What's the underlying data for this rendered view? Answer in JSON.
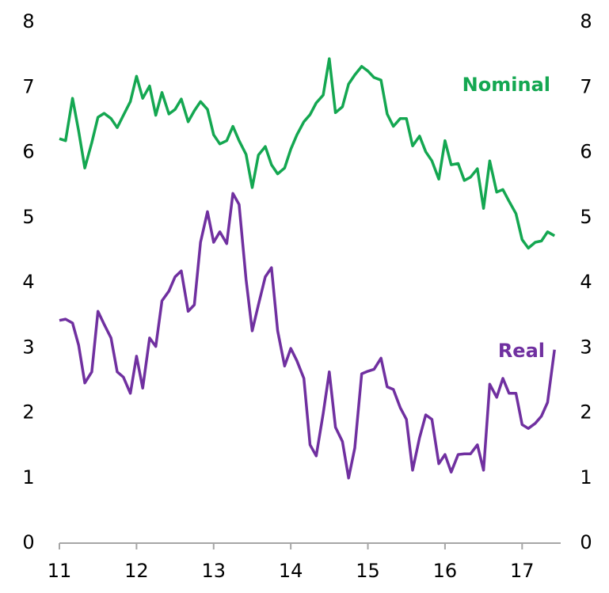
{
  "chart_data": {
    "type": "line",
    "x": [
      11,
      11.08,
      11.17,
      11.25,
      11.33,
      11.42,
      11.5,
      11.58,
      11.67,
      11.75,
      11.83,
      11.92,
      12,
      12.08,
      12.17,
      12.25,
      12.33,
      12.42,
      12.5,
      12.58,
      12.67,
      12.75,
      12.83,
      12.92,
      13,
      13.08,
      13.17,
      13.25,
      13.33,
      13.42,
      13.5,
      13.58,
      13.67,
      13.75,
      13.83,
      13.92,
      14,
      14.08,
      14.17,
      14.25,
      14.33,
      14.42,
      14.5,
      14.58,
      14.67,
      14.75,
      14.83,
      14.92,
      15,
      15.08,
      15.17,
      15.25,
      15.33,
      15.42,
      15.5,
      15.58,
      15.67,
      15.75,
      15.83,
      15.92,
      16,
      16.08,
      16.17,
      16.25,
      16.33,
      16.42,
      16.5,
      16.58,
      16.67,
      16.75,
      16.83,
      16.92,
      17,
      17.08,
      17.17,
      17.25,
      17.33,
      17.42
    ],
    "series": [
      {
        "name": "Nominal",
        "color": "#14a751",
        "values": [
          6.21,
          6.18,
          6.83,
          6.33,
          5.76,
          6.15,
          6.54,
          6.6,
          6.52,
          6.38,
          6.57,
          6.78,
          7.17,
          6.83,
          7.02,
          6.57,
          6.92,
          6.59,
          6.66,
          6.82,
          6.47,
          6.64,
          6.78,
          6.66,
          6.27,
          6.13,
          6.18,
          6.4,
          6.18,
          5.97,
          5.46,
          5.96,
          6.09,
          5.81,
          5.67,
          5.76,
          6.05,
          6.27,
          6.47,
          6.58,
          6.76,
          6.88,
          7.44,
          6.61,
          6.7,
          7.05,
          7.19,
          7.32,
          7.25,
          7.15,
          7.11,
          6.59,
          6.4,
          6.52,
          6.52,
          6.1,
          6.25,
          6.01,
          5.87,
          5.59,
          6.18,
          5.81,
          5.83,
          5.57,
          5.62,
          5.75,
          5.14,
          5.87,
          5.39,
          5.43,
          5.25,
          5.06,
          4.66,
          4.53,
          4.62,
          4.64,
          4.78,
          4.72
        ]
      },
      {
        "name": "Real",
        "color": "#7030a0",
        "values": [
          3.42,
          3.44,
          3.38,
          3.04,
          2.46,
          2.63,
          3.56,
          3.36,
          3.15,
          2.63,
          2.55,
          2.3,
          2.87,
          2.38,
          3.15,
          3.02,
          3.72,
          3.87,
          4.09,
          4.18,
          3.56,
          3.66,
          4.62,
          5.09,
          4.62,
          4.78,
          4.6,
          5.37,
          5.2,
          4.05,
          3.26,
          3.66,
          4.09,
          4.23,
          3.26,
          2.72,
          2.99,
          2.8,
          2.53,
          1.51,
          1.34,
          1.99,
          2.63,
          1.78,
          1.56,
          1.0,
          1.46,
          2.6,
          2.64,
          2.67,
          2.84,
          2.4,
          2.36,
          2.08,
          1.9,
          1.12,
          1.62,
          1.97,
          1.9,
          1.22,
          1.36,
          1.09,
          1.36,
          1.37,
          1.37,
          1.51,
          1.12,
          2.44,
          2.24,
          2.53,
          2.3,
          2.3,
          1.82,
          1.76,
          1.84,
          1.95,
          2.16,
          2.97
        ]
      }
    ],
    "xlim": [
      11,
      17.5
    ],
    "xticks": [
      11,
      12,
      13,
      14,
      15,
      16,
      17
    ],
    "ylim": [
      0,
      8
    ],
    "yticks": [
      0,
      1,
      2,
      3,
      4,
      5,
      6,
      7,
      8
    ],
    "y2lim": [
      0,
      8
    ],
    "y2ticks": [
      0,
      1,
      2,
      3,
      4,
      5,
      6,
      7,
      8
    ],
    "grid": false
  }
}
